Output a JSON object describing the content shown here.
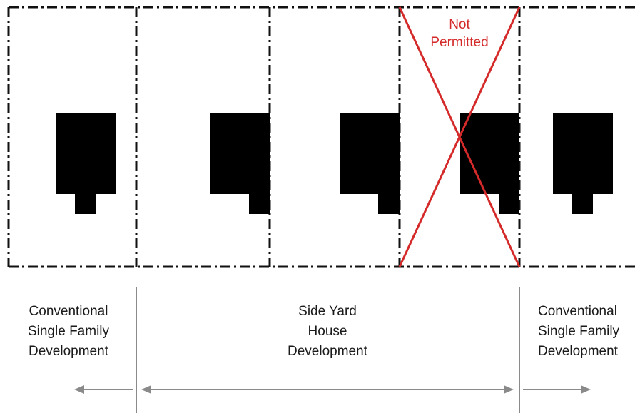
{
  "not_permitted": {
    "line1": "Not",
    "line2": "Permitted",
    "color": "#d42a2a"
  },
  "zones": [
    {
      "id": "left",
      "lines": [
        "Conventional",
        "Single Family",
        "Development"
      ]
    },
    {
      "id": "middle",
      "lines": [
        "Side Yard",
        "House",
        "Development"
      ]
    },
    {
      "id": "right",
      "lines": [
        "Conventional",
        "Single Family",
        "Development"
      ]
    }
  ],
  "colors": {
    "lot_line": "#111111",
    "house": "#000000",
    "arrow": "#8a8a8a"
  }
}
